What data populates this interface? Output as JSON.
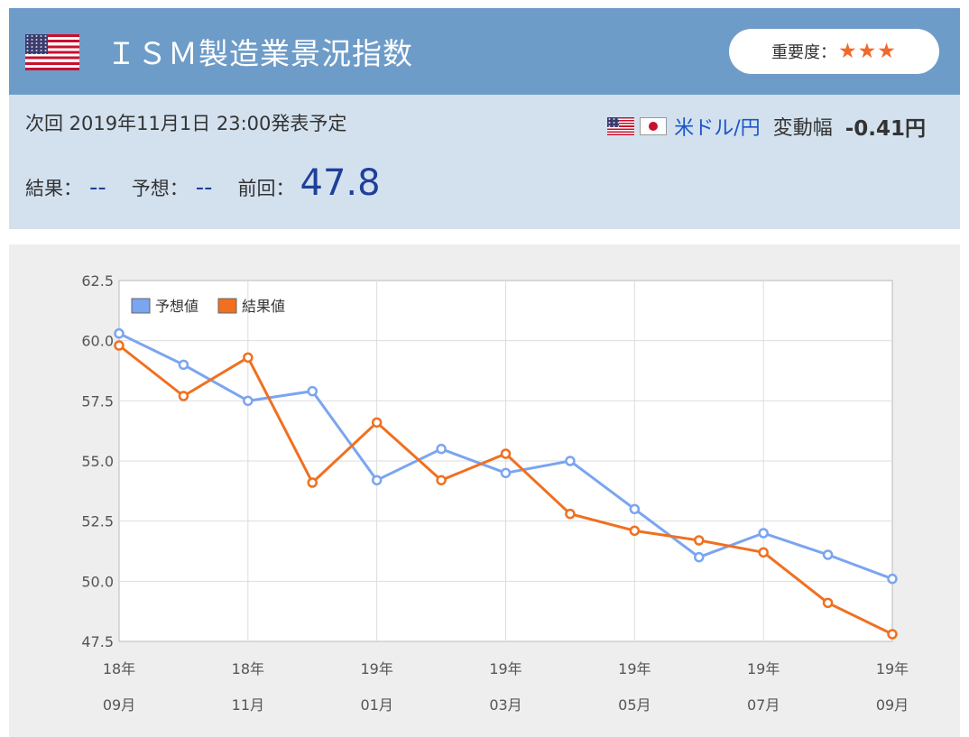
{
  "header": {
    "title": "ＩＳＭ製造業景況指数",
    "importance_label": "重要度：",
    "importance_stars": "★★★",
    "flag": "us-flag-icon"
  },
  "info": {
    "next_release": "次回 2019年11月1日 23:00発表予定",
    "pair_label": "米ドル/円",
    "change_label": "変動幅",
    "change_value": "-0.41円",
    "result_label": "結果：",
    "result_value": "--",
    "forecast_label": "予想：",
    "forecast_value": "--",
    "previous_label": "前回：",
    "previous_value": "47.8"
  },
  "chart_data": {
    "type": "line",
    "x_ticks": [
      {
        "year": "18年",
        "month": "09月"
      },
      {
        "year": "18年",
        "month": "11月"
      },
      {
        "year": "19年",
        "month": "01月"
      },
      {
        "year": "19年",
        "month": "03月"
      },
      {
        "year": "19年",
        "month": "05月"
      },
      {
        "year": "19年",
        "month": "07月"
      },
      {
        "year": "19年",
        "month": "09月"
      }
    ],
    "y_ticks": [
      "62.5",
      "60.0",
      "57.5",
      "55.0",
      "52.5",
      "50.0",
      "47.5"
    ],
    "ylim": [
      47.5,
      62.5
    ],
    "grid": true,
    "legend_position": "top-left",
    "series": [
      {
        "name": "予想値",
        "color": "#7aa5f0",
        "values": [
          60.3,
          59.0,
          57.5,
          57.9,
          54.2,
          55.5,
          54.5,
          55.0,
          53.0,
          51.0,
          52.0,
          51.1,
          50.1
        ]
      },
      {
        "name": "結果値",
        "color": "#f07020",
        "values": [
          59.8,
          57.7,
          59.3,
          54.1,
          56.6,
          54.2,
          55.3,
          52.8,
          52.1,
          51.7,
          51.2,
          49.1,
          47.8
        ]
      }
    ]
  }
}
